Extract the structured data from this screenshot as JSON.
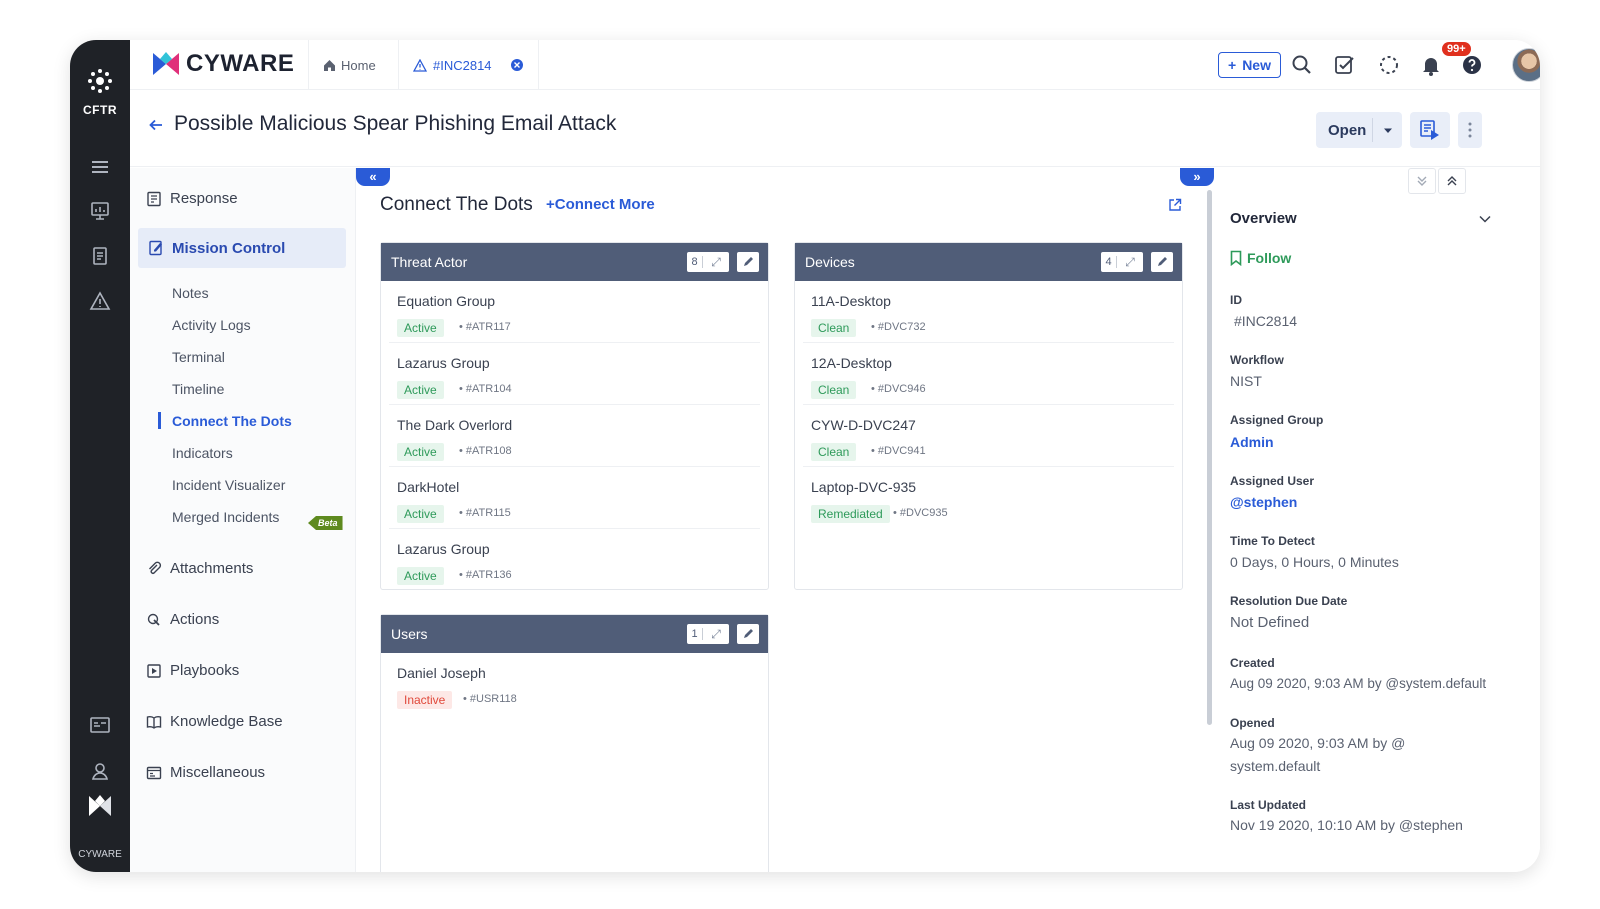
{
  "rail": {
    "logo_text": "CFTR",
    "bottom_text": "CYWARE"
  },
  "topbar": {
    "brand": "CYWARE",
    "home_tab": "Home",
    "incident_tab": "#INC2814",
    "new_button": "New",
    "notification_badge": "99+"
  },
  "titlebar": {
    "title": "Possible Malicious Spear Phishing Email Attack",
    "status": "Open"
  },
  "leftnav": {
    "main_items": [
      {
        "label": "Response"
      },
      {
        "label": "Mission Control"
      },
      {
        "label": "Attachments"
      },
      {
        "label": "Actions"
      },
      {
        "label": "Playbooks"
      },
      {
        "label": "Knowledge Base"
      },
      {
        "label": "Miscellaneous"
      }
    ],
    "sub_items": [
      {
        "label": "Notes"
      },
      {
        "label": "Activity Logs"
      },
      {
        "label": "Terminal"
      },
      {
        "label": "Timeline"
      },
      {
        "label": "Connect The Dots"
      },
      {
        "label": "Indicators"
      },
      {
        "label": "Incident Visualizer"
      },
      {
        "label": "Merged Incidents"
      }
    ],
    "beta_label": "Beta"
  },
  "center": {
    "title": "Connect The Dots",
    "connect_more": "+Connect More",
    "cards": {
      "threat_actor": {
        "title": "Threat Actor",
        "count": "8",
        "items": [
          {
            "name": "Equation Group",
            "status": "Active",
            "code": "• #ATR117"
          },
          {
            "name": "Lazarus Group",
            "status": "Active",
            "code": "• #ATR104"
          },
          {
            "name": "The Dark Overlord",
            "status": "Active",
            "code": "• #ATR108"
          },
          {
            "name": "DarkHotel",
            "status": "Active",
            "code": "• #ATR115"
          },
          {
            "name": "Lazarus Group",
            "status": "Active",
            "code": "• #ATR136"
          }
        ]
      },
      "devices": {
        "title": "Devices",
        "count": "4",
        "items": [
          {
            "name": "11A-Desktop",
            "status": "Clean",
            "code": "• #DVC732"
          },
          {
            "name": "12A-Desktop",
            "status": "Clean",
            "code": "• #DVC946"
          },
          {
            "name": "CYW-D-DVC247",
            "status": "Clean",
            "code": "• #DVC941"
          },
          {
            "name": "Laptop-DVC-935",
            "status": "Remediated",
            "code": "• #DVC935"
          }
        ]
      },
      "users": {
        "title": "Users",
        "count": "1",
        "items": [
          {
            "name": "Daniel Joseph",
            "status": "Inactive",
            "code": "• #USR118"
          }
        ]
      }
    }
  },
  "overview": {
    "title": "Overview",
    "follow": "Follow",
    "fields": [
      {
        "label": "ID",
        "value": "#INC2814"
      },
      {
        "label": "Workflow",
        "value": "NIST"
      },
      {
        "label": "Assigned Group",
        "value": "Admin"
      },
      {
        "label": "Assigned User",
        "value": "@stephen"
      },
      {
        "label": "Time To Detect",
        "value": "0 Days, 0 Hours, 0 Minutes"
      },
      {
        "label": "Resolution Due Date",
        "value": "Not Defined"
      },
      {
        "label": "Created",
        "value": "Aug 09 2020, 9:03 AM by @system.default"
      },
      {
        "label": "Opened",
        "value": "Aug 09 2020, 9:03 AM by @ system.default"
      },
      {
        "label": "Last Updated",
        "value": "Nov 19 2020, 10:10 AM by @stephen"
      }
    ]
  },
  "colors": {
    "accent": "#2a5bd7",
    "rail": "#1f2227",
    "card_header": "#505d78",
    "status_green": "#2e9a5a",
    "status_red": "#e0483a"
  }
}
